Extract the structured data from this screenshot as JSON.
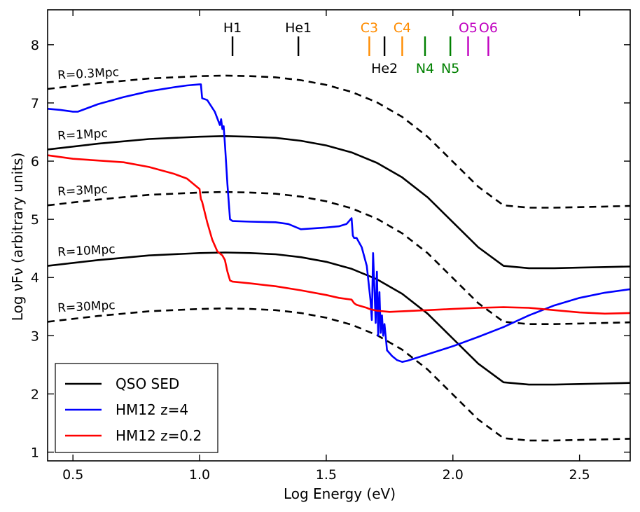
{
  "chart_data": {
    "type": "line",
    "xlabel": "Log Energy (eV)",
    "ylabel": "Log νFν  (arbitrary units)",
    "xlim": [
      0.4,
      2.7
    ],
    "ylim": [
      0.85,
      8.6
    ],
    "grid": false,
    "legend_position": "bottom-left",
    "x_ticks": [
      0.5,
      1.0,
      1.5,
      2.0,
      2.5
    ],
    "x_tick_labels": [
      "0.5",
      "1.0",
      "1.5",
      "2.0",
      "2.5"
    ],
    "y_ticks": [
      1,
      2,
      3,
      4,
      5,
      6,
      7,
      8
    ],
    "y_tick_labels": [
      "1",
      "2",
      "3",
      "4",
      "5",
      "6",
      "7",
      "8"
    ],
    "qso_shape": {
      "x": [
        0.4,
        0.6,
        0.8,
        1.0,
        1.1,
        1.2,
        1.3,
        1.4,
        1.5,
        1.6,
        1.7,
        1.8,
        1.9,
        2.0,
        2.1,
        2.2,
        2.3,
        2.4,
        2.5,
        2.6,
        2.7
      ],
      "y": [
        6.2,
        6.3,
        6.38,
        6.42,
        6.43,
        6.42,
        6.4,
        6.35,
        6.27,
        6.15,
        5.97,
        5.72,
        5.38,
        4.95,
        4.52,
        4.2,
        4.16,
        4.16,
        4.17,
        4.18,
        4.19
      ]
    },
    "series": [
      {
        "name": "QSO SED",
        "color": "#000000",
        "dash": "solid",
        "label": "R=1Mpc",
        "offset": 0,
        "in_legend": true
      },
      {
        "name": "R=0.3Mpc",
        "color": "#000000",
        "dash": "dashed",
        "label": "R=0.3Mpc",
        "offset": 1.04,
        "in_legend": false
      },
      {
        "name": "R=3Mpc",
        "color": "#000000",
        "dash": "dashed",
        "label": "R=3Mpc",
        "offset": -0.96,
        "in_legend": false
      },
      {
        "name": "R=10Mpc",
        "color": "#000000",
        "dash": "solid",
        "label": "R=10Mpc",
        "offset": -2.0,
        "in_legend": false
      },
      {
        "name": "R=30Mpc",
        "color": "#000000",
        "dash": "dashed",
        "label": "R=30Mpc",
        "offset": -2.96,
        "in_legend": false
      },
      {
        "name": "HM12 z=4",
        "color": "#0000ff",
        "dash": "solid",
        "in_legend": true,
        "x": [
          0.4,
          0.45,
          0.5,
          0.52,
          0.6,
          0.7,
          0.8,
          0.9,
          0.95,
          1.0,
          1.005,
          1.01,
          1.03,
          1.06,
          1.08,
          1.085,
          1.09,
          1.095,
          1.1,
          1.11,
          1.12,
          1.13,
          1.2,
          1.3,
          1.35,
          1.4,
          1.5,
          1.55,
          1.58,
          1.6,
          1.605,
          1.61,
          1.62,
          1.64,
          1.66,
          1.67,
          1.675,
          1.68,
          1.685,
          1.69,
          1.695,
          1.7,
          1.705,
          1.71,
          1.715,
          1.72,
          1.725,
          1.73,
          1.74,
          1.76,
          1.78,
          1.8,
          1.82,
          1.9,
          2.0,
          2.1,
          2.2,
          2.3,
          2.4,
          2.5,
          2.6,
          2.7
        ],
        "y": [
          6.9,
          6.88,
          6.85,
          6.85,
          6.98,
          7.1,
          7.2,
          7.27,
          7.3,
          7.32,
          7.32,
          7.08,
          7.05,
          6.85,
          6.62,
          6.72,
          6.55,
          6.6,
          6.3,
          5.6,
          5.0,
          4.97,
          4.96,
          4.95,
          4.92,
          4.83,
          4.86,
          4.88,
          4.92,
          5.02,
          4.72,
          4.68,
          4.68,
          4.52,
          4.2,
          3.8,
          3.6,
          3.27,
          4.42,
          3.85,
          3.22,
          4.1,
          3.0,
          3.75,
          3.05,
          3.35,
          3.0,
          3.2,
          2.75,
          2.65,
          2.58,
          2.55,
          2.57,
          2.68,
          2.82,
          2.98,
          3.15,
          3.35,
          3.52,
          3.65,
          3.74,
          3.8
        ]
      },
      {
        "name": "HM12 z=0.2",
        "color": "#ff0000",
        "dash": "solid",
        "in_legend": true,
        "x": [
          0.4,
          0.5,
          0.6,
          0.7,
          0.8,
          0.9,
          0.95,
          1.0,
          1.005,
          1.01,
          1.03,
          1.05,
          1.07,
          1.09,
          1.1,
          1.11,
          1.12,
          1.13,
          1.2,
          1.3,
          1.4,
          1.5,
          1.55,
          1.6,
          1.61,
          1.62,
          1.66,
          1.67,
          1.7,
          1.75,
          1.8,
          1.9,
          2.0,
          2.1,
          2.2,
          2.3,
          2.4,
          2.5,
          2.6,
          2.7
        ],
        "y": [
          6.1,
          6.04,
          6.01,
          5.98,
          5.9,
          5.78,
          5.7,
          5.52,
          5.35,
          5.3,
          4.95,
          4.65,
          4.45,
          4.38,
          4.3,
          4.1,
          3.95,
          3.93,
          3.9,
          3.85,
          3.78,
          3.7,
          3.65,
          3.62,
          3.56,
          3.53,
          3.48,
          3.46,
          3.43,
          3.41,
          3.42,
          3.44,
          3.46,
          3.48,
          3.49,
          3.48,
          3.44,
          3.4,
          3.38,
          3.39
        ]
      }
    ],
    "ions": [
      {
        "name": "H1",
        "x": 1.13,
        "color": "#000000",
        "pos": "top"
      },
      {
        "name": "He1",
        "x": 1.39,
        "color": "#000000",
        "pos": "top"
      },
      {
        "name": "C3",
        "x": 1.67,
        "color": "#ff8c00",
        "pos": "top"
      },
      {
        "name": "He2",
        "x": 1.73,
        "color": "#000000",
        "pos": "bottom"
      },
      {
        "name": "C4",
        "x": 1.8,
        "color": "#ff8c00",
        "pos": "top"
      },
      {
        "name": "N4",
        "x": 1.89,
        "color": "#008000",
        "pos": "bottom"
      },
      {
        "name": "N5",
        "x": 1.99,
        "color": "#008000",
        "pos": "bottom"
      },
      {
        "name": "O5",
        "x": 2.06,
        "color": "#c000c0",
        "pos": "top"
      },
      {
        "name": "O6",
        "x": 2.14,
        "color": "#c000c0",
        "pos": "top"
      }
    ],
    "curve_labels": [
      {
        "text": "R=0.3Mpc",
        "series": "R=0.3Mpc"
      },
      {
        "text": "R=1Mpc",
        "series": "QSO SED"
      },
      {
        "text": "R=3Mpc",
        "series": "R=3Mpc"
      },
      {
        "text": "R=10Mpc",
        "series": "R=10Mpc"
      },
      {
        "text": "R=30Mpc",
        "series": "R=30Mpc"
      }
    ]
  }
}
